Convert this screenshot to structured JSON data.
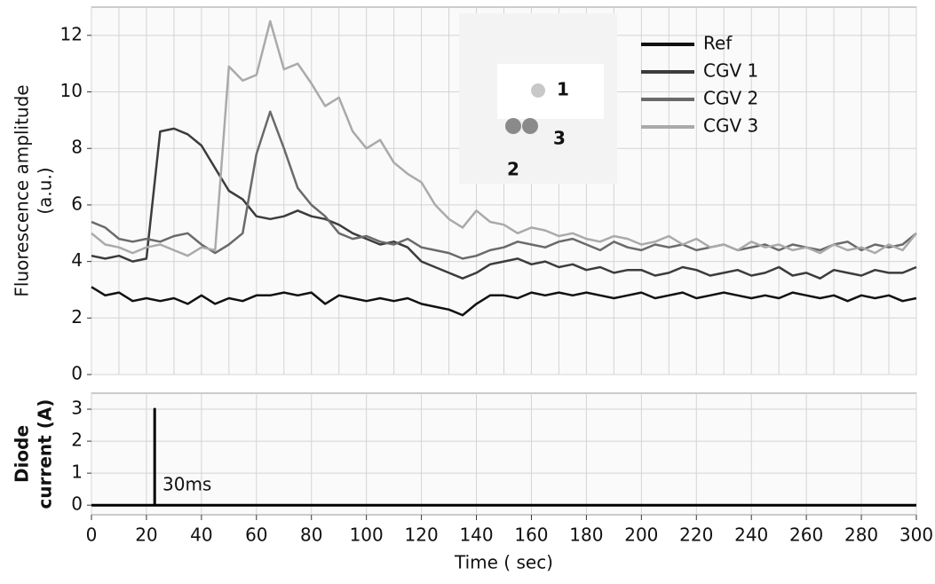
{
  "chart_data": [
    {
      "type": "line",
      "ylabel_lines": [
        "Fluorescence amplitude",
        "(a.u.)"
      ],
      "x": [
        0,
        5,
        10,
        15,
        20,
        25,
        30,
        35,
        40,
        45,
        50,
        55,
        60,
        65,
        70,
        75,
        80,
        85,
        90,
        95,
        100,
        105,
        110,
        115,
        120,
        125,
        130,
        135,
        140,
        145,
        150,
        155,
        160,
        165,
        170,
        175,
        180,
        185,
        190,
        195,
        200,
        205,
        210,
        215,
        220,
        225,
        230,
        235,
        240,
        245,
        250,
        255,
        260,
        265,
        270,
        275,
        280,
        285,
        290,
        295,
        300
      ],
      "series": [
        {
          "name": "Ref",
          "color": "#111111",
          "values": [
            3.1,
            2.8,
            2.9,
            2.6,
            2.7,
            2.6,
            2.7,
            2.5,
            2.8,
            2.5,
            2.7,
            2.6,
            2.8,
            2.8,
            2.9,
            2.8,
            2.9,
            2.5,
            2.8,
            2.7,
            2.6,
            2.7,
            2.6,
            2.7,
            2.5,
            2.4,
            2.3,
            2.1,
            2.5,
            2.8,
            2.8,
            2.7,
            2.9,
            2.8,
            2.9,
            2.8,
            2.9,
            2.8,
            2.7,
            2.8,
            2.9,
            2.7,
            2.8,
            2.9,
            2.7,
            2.8,
            2.9,
            2.8,
            2.7,
            2.8,
            2.7,
            2.9,
            2.8,
            2.7,
            2.8,
            2.6,
            2.8,
            2.7,
            2.8,
            2.6,
            2.7
          ]
        },
        {
          "name": "CGV 1",
          "color": "#3c3c3c",
          "values": [
            4.2,
            4.1,
            4.2,
            4.0,
            4.1,
            8.6,
            8.7,
            8.5,
            8.1,
            7.3,
            6.5,
            6.2,
            5.6,
            5.5,
            5.6,
            5.8,
            5.6,
            5.5,
            5.3,
            5.0,
            4.8,
            4.6,
            4.7,
            4.5,
            4.0,
            3.8,
            3.6,
            3.4,
            3.6,
            3.9,
            4.0,
            4.1,
            3.9,
            4.0,
            3.8,
            3.9,
            3.7,
            3.8,
            3.6,
            3.7,
            3.7,
            3.5,
            3.6,
            3.8,
            3.7,
            3.5,
            3.6,
            3.7,
            3.5,
            3.6,
            3.8,
            3.5,
            3.6,
            3.4,
            3.7,
            3.6,
            3.5,
            3.7,
            3.6,
            3.6,
            3.8
          ]
        },
        {
          "name": "CGV 2",
          "color": "#6a6a6a",
          "values": [
            5.4,
            5.2,
            4.8,
            4.7,
            4.8,
            4.7,
            4.9,
            5.0,
            4.6,
            4.3,
            4.6,
            5.0,
            7.8,
            9.3,
            8.0,
            6.6,
            6.0,
            5.6,
            5.0,
            4.8,
            4.9,
            4.7,
            4.6,
            4.8,
            4.5,
            4.4,
            4.3,
            4.1,
            4.2,
            4.4,
            4.5,
            4.7,
            4.6,
            4.5,
            4.7,
            4.8,
            4.6,
            4.4,
            4.7,
            4.5,
            4.4,
            4.6,
            4.5,
            4.6,
            4.4,
            4.5,
            4.6,
            4.4,
            4.5,
            4.6,
            4.4,
            4.6,
            4.5,
            4.4,
            4.6,
            4.7,
            4.4,
            4.6,
            4.5,
            4.6,
            5.0
          ]
        },
        {
          "name": "CGV 3",
          "color": "#aaaaaa",
          "values": [
            5.0,
            4.6,
            4.5,
            4.3,
            4.5,
            4.6,
            4.4,
            4.2,
            4.5,
            4.4,
            10.9,
            10.4,
            10.6,
            12.5,
            10.8,
            11.0,
            10.3,
            9.5,
            9.8,
            8.6,
            8.0,
            8.3,
            7.5,
            7.1,
            6.8,
            6.0,
            5.5,
            5.2,
            5.8,
            5.4,
            5.3,
            5.0,
            5.2,
            5.1,
            4.9,
            5.0,
            4.8,
            4.7,
            4.9,
            4.8,
            4.6,
            4.7,
            4.9,
            4.6,
            4.8,
            4.5,
            4.6,
            4.4,
            4.7,
            4.5,
            4.6,
            4.4,
            4.5,
            4.3,
            4.6,
            4.4,
            4.5,
            4.3,
            4.6,
            4.4,
            5.0
          ]
        }
      ],
      "xlim": [
        0,
        300
      ],
      "xticks": [
        0,
        10,
        20,
        30,
        40,
        50,
        60,
        70,
        80,
        90,
        100,
        110,
        120,
        130,
        140,
        150,
        160,
        170,
        180,
        190,
        200,
        210,
        220,
        230,
        240,
        250,
        260,
        270,
        280,
        290,
        300
      ],
      "ylim": [
        0,
        13
      ],
      "yticks": [
        0,
        2,
        4,
        6,
        8,
        10,
        12
      ],
      "grid": true,
      "legend": "upper-right",
      "annotations": [
        "1",
        "2",
        "3"
      ]
    },
    {
      "type": "line",
      "ylabel_lines": [
        "Diode",
        "current (A)"
      ],
      "xlabel": "Time ( sec)",
      "x": [
        0,
        23,
        23,
        23,
        300
      ],
      "series": [
        {
          "color": "#000000",
          "values": [
            0,
            0,
            3,
            0,
            0
          ]
        }
      ],
      "xlim": [
        0,
        300
      ],
      "xticks": [
        0,
        20,
        40,
        60,
        80,
        100,
        120,
        140,
        160,
        180,
        200,
        220,
        240,
        260,
        280,
        300
      ],
      "ylim": [
        -0.3,
        3.5
      ],
      "yticks": [
        0,
        1,
        2,
        3
      ],
      "grid": true,
      "annotations": [
        "30ms"
      ]
    }
  ]
}
